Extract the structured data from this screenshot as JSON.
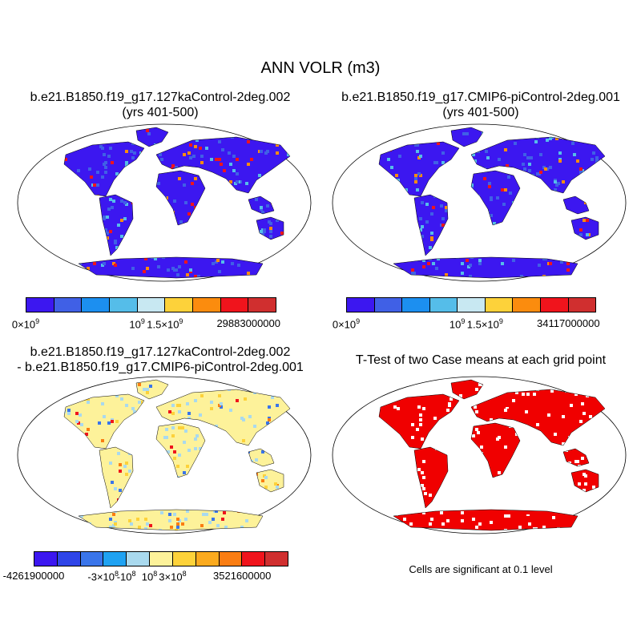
{
  "title": "ANN VOLR (m3)",
  "panels": [
    {
      "id": "case1",
      "title_lines": [
        "b.e21.B1850.f19_g17.127kaControl-2deg.002",
        "(yrs 401-500)"
      ],
      "colorbar": {
        "colors": [
          "#3c17f0",
          "#4060e6",
          "#1c8ff0",
          "#55bde9",
          "#c8e8f2",
          "#fdd23a",
          "#fb8c0e",
          "#f0141c",
          "#d02f2f"
        ],
        "labels": [
          {
            "base": "0×10",
            "sup": "9",
            "at": 0
          },
          {
            "base": "10",
            "sup": "9",
            "at": 4
          },
          {
            "base": "1.5×10",
            "sup": "9",
            "at": 5
          },
          {
            "base": "29883000000",
            "sup": "",
            "at": 8
          }
        ]
      }
    },
    {
      "id": "case2",
      "title_lines": [
        "b.e21.B1850.f19_g17.CMIP6-piControl-2deg.001",
        "(yrs 401-500)"
      ],
      "colorbar": {
        "colors": [
          "#3c17f0",
          "#4060e6",
          "#1c8ff0",
          "#55bde9",
          "#c8e8f2",
          "#fdd23a",
          "#fb8c0e",
          "#f0141c",
          "#d02f2f"
        ],
        "labels": [
          {
            "base": "0×10",
            "sup": "9",
            "at": 0
          },
          {
            "base": "10",
            "sup": "9",
            "at": 4
          },
          {
            "base": "1.5×10",
            "sup": "9",
            "at": 5
          },
          {
            "base": "34117000000",
            "sup": "",
            "at": 8
          }
        ]
      }
    },
    {
      "id": "difference",
      "title_lines": [
        "b.e21.B1850.f19_g17.127kaControl-2deg.002",
        "- b.e21.B1850.f19_g17.CMIP6-piControl-2deg.001"
      ],
      "colorbar": {
        "colors": [
          "#3c17f0",
          "#2f45e8",
          "#3a75ea",
          "#1fa2f2",
          "#a9d9ee",
          "#fdf29a",
          "#fdd23a",
          "#fbaa1e",
          "#fa7d12",
          "#f0141c",
          "#d02f2f"
        ],
        "labels": [
          {
            "base": "-4261900000",
            "sup": "",
            "at": 0
          },
          {
            "base": "-3×10",
            "sup": "8",
            "at": 3
          },
          {
            "base": "-10",
            "sup": "8",
            "at": 4
          },
          {
            "base": "10",
            "sup": "8",
            "at": 5
          },
          {
            "base": "3×10",
            "sup": "8",
            "at": 6
          },
          {
            "base": "3521600000",
            "sup": "",
            "at": 9
          }
        ]
      }
    },
    {
      "id": "ttest",
      "title_lines": [
        "T-Test of two Case means at each grid point"
      ],
      "note": "Cells are significant at 0.1 level",
      "colors": [
        "#f00000"
      ]
    }
  ],
  "palette": {
    "ocean": "#ffffff",
    "land_low": "#3c17f0",
    "land_high": "#f0141c",
    "diff_neutral": "#fdf29a",
    "diff_negative": "#a9d9ee",
    "ttest_sig": "#f00000"
  }
}
